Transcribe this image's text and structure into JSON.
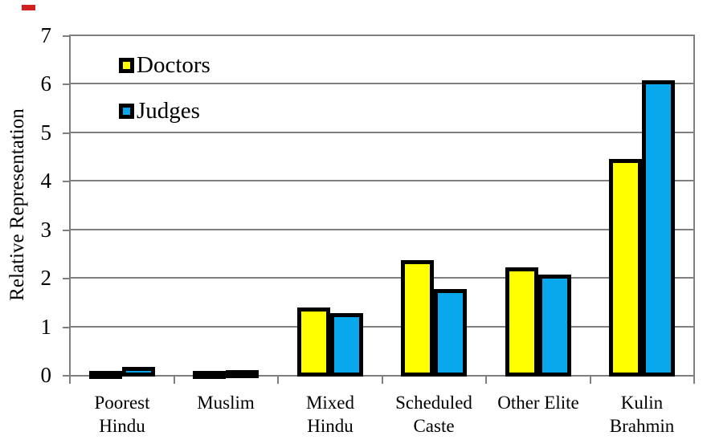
{
  "colors": {
    "doctors_fill": "#FFFF00",
    "judges_fill": "#09A7EC",
    "bar_border": "#000000",
    "grid": "#7F7F7F",
    "text": "#000000",
    "red_dash": "#D21F1F"
  },
  "chart_data": {
    "type": "bar",
    "title": "",
    "xlabel": "",
    "ylabel": "Relative Representation",
    "ylim": [
      0,
      7
    ],
    "yticks": [
      0,
      1,
      2,
      3,
      4,
      5,
      6,
      7
    ],
    "grid": true,
    "legend_position": "top-left-inside",
    "categories": [
      "Poorest Hindu",
      "Muslim",
      "Mixed Hindu",
      "Scheduled Caste",
      "Other Elite",
      "Kulin Brahmin"
    ],
    "category_label_lines": [
      [
        "Poorest",
        "Hindu"
      ],
      [
        "Muslim"
      ],
      [
        "Mixed",
        "Hindu"
      ],
      [
        "Scheduled",
        "Caste"
      ],
      [
        "Other Elite"
      ],
      [
        "Kulin",
        "Brahmin"
      ]
    ],
    "series": [
      {
        "name": "Doctors",
        "color": "#FFFF00",
        "values": [
          0.08,
          0.1,
          1.43,
          2.4,
          2.25,
          4.48
        ]
      },
      {
        "name": "Judges",
        "color": "#09A7EC",
        "values": [
          0.2,
          0.13,
          1.3,
          1.8,
          2.1,
          6.1
        ]
      }
    ]
  }
}
